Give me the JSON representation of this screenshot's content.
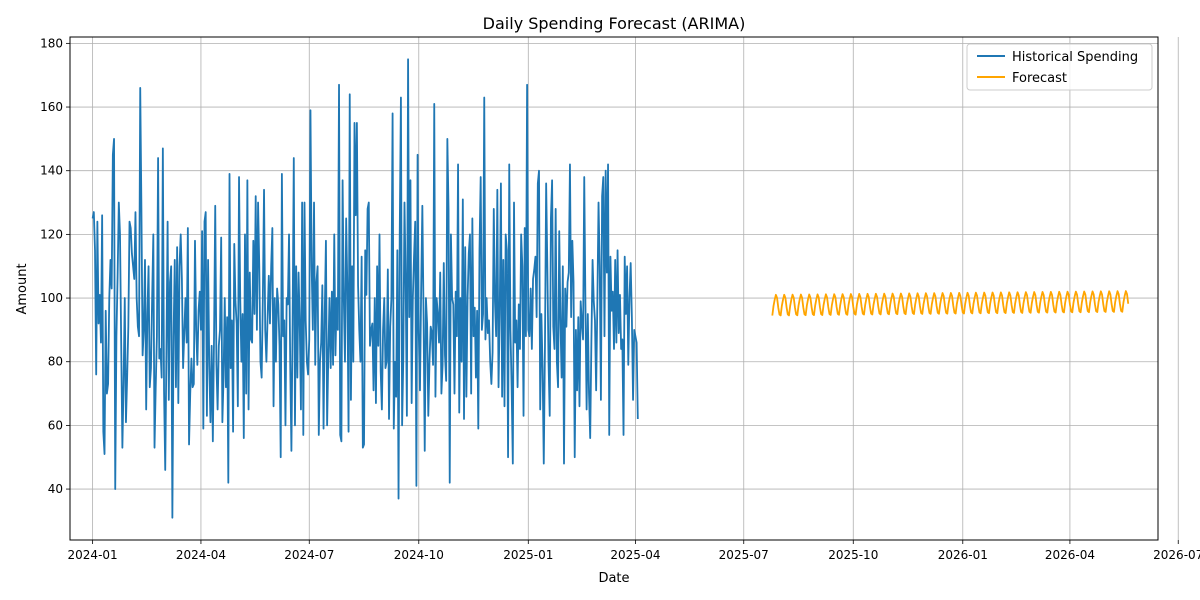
{
  "chart_data": {
    "type": "line",
    "title": "Daily Spending Forecast (ARIMA)",
    "xlabel": "Date",
    "ylabel": "Amount",
    "x_range": [
      "2023-12-13",
      "2026-06-14"
    ],
    "ylim": [
      24,
      182
    ],
    "grid": true,
    "legend_position": "top-right",
    "x_ticks": [
      "2024-01",
      "2024-04",
      "2024-07",
      "2024-10",
      "2025-01",
      "2025-04",
      "2025-07",
      "2025-10",
      "2026-01",
      "2026-04",
      "2026-07"
    ],
    "y_ticks": [
      40,
      60,
      80,
      100,
      120,
      140,
      160,
      180
    ],
    "series": [
      {
        "name": "Historical Spending",
        "color": "#1f77b4",
        "start_date": "2024-01-01",
        "step_days": 1,
        "values": [
          125,
          127,
          115,
          76,
          124,
          92,
          101,
          86,
          126,
          58,
          51,
          96,
          70,
          73,
          100,
          112,
          103,
          145,
          150,
          40,
          88,
          107,
          130,
          120,
          86,
          53,
          73,
          100,
          61,
          75,
          91,
          124,
          122,
          114,
          110,
          106,
          127,
          100,
          91,
          88,
          166,
          128,
          82,
          90,
          112,
          65,
          95,
          110,
          72,
          78,
          100,
          120,
          53,
          72,
          88,
          144,
          81,
          84,
          75,
          147,
          71,
          46,
          83,
          124,
          68,
          105,
          110,
          31,
          88,
          112,
          72,
          116,
          67,
          110,
          120,
          106,
          78,
          89,
          100,
          86,
          122,
          54,
          70,
          81,
          72,
          73,
          118,
          90,
          79,
          96,
          102,
          90,
          121,
          59,
          124,
          127,
          63,
          112,
          79,
          61,
          85,
          55,
          88,
          129,
          79,
          65,
          85,
          90,
          119,
          61,
          75,
          100,
          72,
          94,
          42,
          139,
          78,
          93,
          58,
          117,
          99,
          92,
          66,
          138,
          100,
          80,
          95,
          56,
          120,
          70,
          137,
          65,
          108,
          87,
          86,
          118,
          95,
          132,
          90,
          130,
          110,
          80,
          75,
          100,
          134,
          90,
          80,
          94,
          107,
          92,
          110,
          122,
          66,
          100,
          80,
          103,
          98,
          85,
          50,
          139,
          88,
          93,
          60,
          100,
          98,
          120,
          79,
          52,
          92,
          144,
          60,
          110,
          75,
          108,
          92,
          65,
          130,
          57,
          130,
          93,
          80,
          76,
          87,
          159,
          110,
          90,
          130,
          79,
          105,
          110,
          57,
          80,
          86,
          104,
          59,
          95,
          118,
          60,
          82,
          100,
          78,
          102,
          79,
          120,
          82,
          100,
          90,
          167,
          57,
          55,
          137,
          100,
          80,
          125,
          103,
          58,
          164,
          68,
          110,
          80,
          155,
          126,
          155,
          104,
          90,
          80,
          113,
          53,
          54,
          115,
          101,
          128,
          130,
          85,
          90,
          92,
          71,
          100,
          67,
          110,
          85,
          120,
          77,
          65,
          90,
          100,
          78,
          80,
          109,
          62,
          91,
          100,
          158,
          59,
          80,
          69,
          115,
          37,
          120,
          163,
          60,
          81,
          130,
          105,
          63,
          175,
          94,
          137,
          67,
          100,
          113,
          124,
          41,
          145,
          89,
          71,
          103,
          129,
          95,
          52,
          100,
          92,
          63,
          80,
          91,
          89,
          79,
          161,
          69,
          100,
          95,
          86,
          108,
          70,
          79,
          111,
          82,
          74,
          150,
          128,
          42,
          120,
          100,
          98,
          70,
          102,
          88,
          142,
          64,
          100,
          80,
          131,
          62,
          116,
          69,
          100,
          114,
          120,
          70,
          125,
          88,
          97,
          75,
          96,
          59,
          115,
          138,
          90,
          95,
          163,
          87,
          100,
          89,
          93,
          80,
          73,
          83,
          128,
          99,
          88,
          134,
          72,
          95,
          136,
          69,
          112,
          66,
          120,
          115,
          50,
          142,
          90,
          72,
          48,
          130,
          86,
          93,
          72,
          98,
          84,
          120,
          110,
          63,
          122,
          88,
          167,
          90,
          88,
          103,
          84,
          106,
          109,
          113,
          94,
          136,
          140,
          65,
          95,
          78,
          48,
          85,
          136,
          110,
          80,
          63,
          125,
          137,
          91,
          84,
          128,
          80,
          72,
          121,
          93,
          75,
          110,
          48,
          103,
          91,
          105,
          108,
          142,
          94,
          118,
          105,
          50,
          90,
          71,
          94,
          66,
          99,
          92,
          87,
          138,
          98,
          65,
          95,
          70,
          56,
          86,
          112,
          99,
          93,
          71,
          98,
          130,
          110,
          68,
          132,
          138,
          88,
          140,
          108,
          142,
          57,
          113,
          96,
          102,
          84,
          112,
          86,
          115,
          89,
          101,
          84,
          87,
          57,
          113,
          95,
          110,
          79,
          100,
          111,
          94,
          68,
          90,
          88,
          86,
          62
        ],
        "x_label_override": null
      },
      {
        "name": "Forecast",
        "color": "#ffa500",
        "start_date": "2025-07-25",
        "step_days": 1,
        "pattern": [
          94.5,
          97.5,
          99.5,
          101.0,
          100.0,
          97.0,
          94.8
        ],
        "pattern_drift_total": 1.2,
        "n_points": 300
      }
    ]
  }
}
